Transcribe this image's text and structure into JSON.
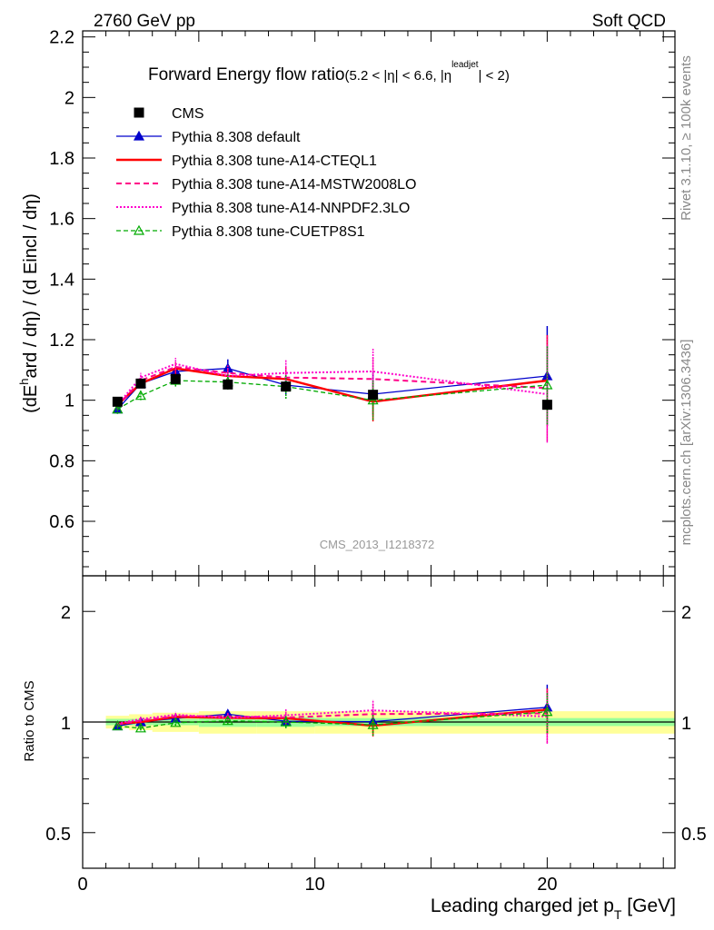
{
  "header": {
    "left": "2760 GeV pp",
    "right": "Soft QCD"
  },
  "side_labels": {
    "rivet": "Rivet 3.1.10, ≥ 100k events",
    "mcplots": "mcplots.cern.ch [arXiv:1306.3436]"
  },
  "watermark": "CMS_2013_I1218372",
  "chart_data": {
    "type": "line",
    "title_main": "Forward Energy flow ratio",
    "title_cond_a": "(5.2 < |η| < 6.6, |η",
    "title_cond_sup": "leadjet",
    "title_cond_b": "| < 2)",
    "ylabel_a": "(dE",
    "ylabel_sup": "h",
    "ylabel_b": "ard / dη) / (d Eincl / dη)",
    "xlabel_a": "Leading charged jet p",
    "xlabel_sub": "T",
    "xlabel_b": " [GeV]",
    "ratio_ylabel": "Ratio to CMS",
    "xlim": [
      0,
      25.5
    ],
    "ylim": [
      0.42,
      2.22
    ],
    "ratio_ylim": [
      0.4,
      2.5
    ],
    "ratio_log": true,
    "x_ticks": [
      0,
      10,
      20
    ],
    "x_tick_labels": [
      "0",
      "10",
      "20"
    ],
    "y_ticks": [
      0.6,
      0.8,
      1.0,
      1.2,
      1.4,
      1.6,
      1.8,
      2.0,
      2.2
    ],
    "y_tick_labels": [
      "0.6",
      "0.8",
      "1",
      "1.2",
      "1.4",
      "1.6",
      "1.8",
      "2",
      "2.2"
    ],
    "ratio_ticks": [
      0.5,
      1,
      2
    ],
    "ratio_tick_labels": [
      "0.5",
      "1",
      "2"
    ],
    "legend_position": "top-left",
    "x": [
      1.5,
      2.5,
      4.0,
      6.25,
      8.75,
      12.5,
      20.0
    ],
    "cms": {
      "name": "CMS",
      "values": [
        0.995,
        1.055,
        1.07,
        1.052,
        1.045,
        1.018,
        0.985
      ],
      "color": "#000000"
    },
    "cms_band_edges": [
      1.0,
      2.0,
      3.0,
      5.0,
      7.5,
      10.0,
      15.0,
      25.5
    ],
    "cms_band_stat": [
      0.02,
      0.02,
      0.02,
      0.03,
      0.03,
      0.025,
      0.025
    ],
    "cms_band_total": [
      0.04,
      0.05,
      0.06,
      0.07,
      0.07,
      0.07,
      0.07
    ],
    "series": [
      {
        "name": "Pythia 8.308 default",
        "color": "#0000cc",
        "dash": "",
        "width": 1.3,
        "marker": "triangle-filled",
        "values": [
          0.97,
          1.055,
          1.095,
          1.105,
          1.05,
          1.02,
          1.08
        ],
        "errors": [
          0.015,
          0.015,
          0.02,
          0.03,
          0.035,
          0.07,
          0.165
        ]
      },
      {
        "name": "Pythia 8.308 tune-A14-CTEQL1",
        "color": "#ff0000",
        "dash": "",
        "width": 2.4,
        "marker": "none",
        "values": [
          0.985,
          1.055,
          1.105,
          1.08,
          1.07,
          0.995,
          1.065
        ],
        "errors": [
          0.015,
          0.015,
          0.02,
          0.025,
          0.04,
          0.065,
          0.15
        ]
      },
      {
        "name": "Pythia 8.308 tune-A14-MSTW2008LO",
        "color": "#ff0088",
        "dash": "6,4",
        "width": 2.0,
        "marker": "none",
        "values": [
          0.98,
          1.065,
          1.11,
          1.09,
          1.075,
          1.07,
          1.04
        ],
        "errors": [
          0.015,
          0.015,
          0.02,
          0.025,
          0.04,
          0.07,
          0.175
        ]
      },
      {
        "name": "Pythia 8.308 tune-A14-NNPDF2.3LO",
        "color": "#ff00cc",
        "dash": "2,2",
        "width": 2.0,
        "marker": "none",
        "values": [
          0.985,
          1.075,
          1.12,
          1.08,
          1.09,
          1.095,
          1.02
        ],
        "errors": [
          0.015,
          0.015,
          0.02,
          0.025,
          0.045,
          0.075,
          0.16
        ]
      },
      {
        "name": "Pythia 8.308 tune-CUETP8S1",
        "color": "#00aa00",
        "dash": "5,3",
        "width": 1.3,
        "marker": "triangle-open",
        "values": [
          0.97,
          1.015,
          1.065,
          1.06,
          1.045,
          1.0,
          1.05
        ],
        "errors": [
          0.015,
          0.015,
          0.02,
          0.025,
          0.04,
          0.065,
          0.13
        ]
      }
    ]
  }
}
